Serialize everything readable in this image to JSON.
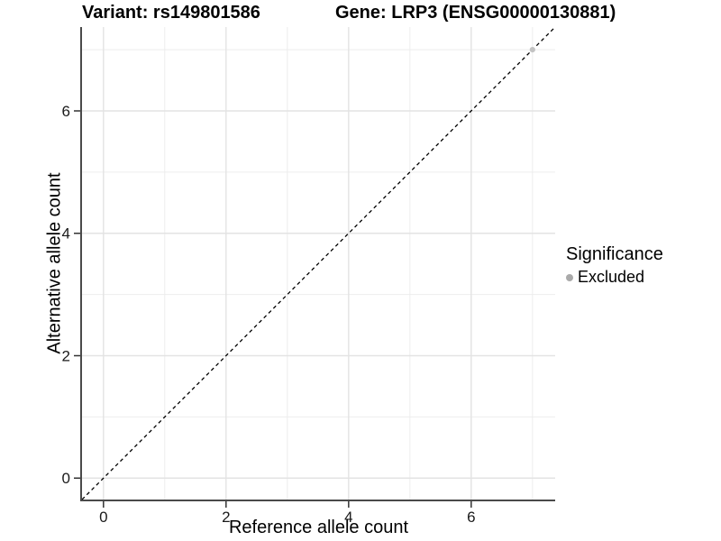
{
  "titles": {
    "left": "Variant: rs149801586",
    "right": "Gene: LRP3 (ENSG00000130881)"
  },
  "legend": {
    "title": "Significance",
    "items": [
      {
        "label": "Excluded",
        "marker": "circle-icon",
        "color": "#aaaaaa"
      }
    ]
  },
  "chart_data": {
    "type": "scatter",
    "xlabel": "Reference allele count",
    "ylabel": "Alternative allele count",
    "xlim": [
      -0.35,
      7.37
    ],
    "ylim": [
      -0.35,
      7.37
    ],
    "x_ticks": [
      0,
      2,
      4,
      6
    ],
    "y_ticks": [
      0,
      2,
      4,
      6
    ],
    "x_minor": [
      1,
      3,
      5,
      7
    ],
    "y_minor": [
      1,
      3,
      5,
      7
    ],
    "grid": true,
    "legend_position": "right",
    "reference_line": {
      "slope": 1,
      "intercept": 0,
      "style": "dashed",
      "color": "#000000"
    },
    "series": [
      {
        "name": "Excluded",
        "color": "#c3c3c3",
        "points": [
          {
            "x": 7,
            "y": 7
          }
        ]
      }
    ],
    "colors": {
      "grid_major": "#e3e3e3",
      "grid_minor": "#ededed",
      "axis_line": "#4a4a4a",
      "tick_mark": "#333333",
      "tick_text": "#1a1a1a",
      "background": "#ffffff"
    }
  }
}
